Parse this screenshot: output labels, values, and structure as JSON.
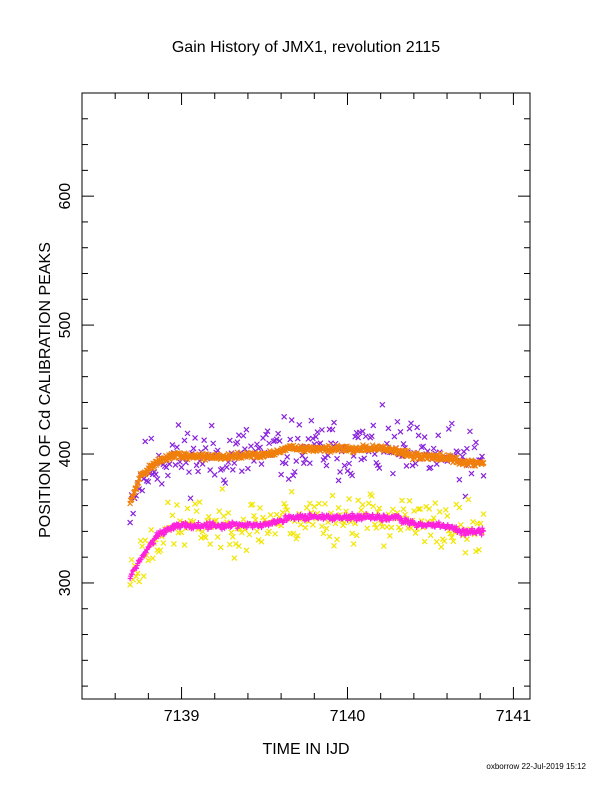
{
  "chart_data": {
    "type": "scatter",
    "title": "Gain History of JMX1, revolution 2115",
    "xlabel": "TIME IN IJD",
    "ylabel": "POSITION OF Cd CALIBRATION PEAKS",
    "xlim": [
      7138.4,
      7141.1
    ],
    "ylim": [
      210,
      680
    ],
    "x_ticks": [
      7139,
      7140,
      7141
    ],
    "y_ticks": [
      300,
      400,
      500,
      600
    ],
    "x_minor_step": 0.2,
    "y_minor_step": 20,
    "grid": false,
    "footer": "oxborrow 22-Jul-2019 15:12",
    "series": [
      {
        "color": "#8822dd",
        "marker": "x",
        "scatter_seed": 11,
        "trend": [
          [
            7138.69,
            362
          ],
          [
            7138.75,
            382
          ],
          [
            7138.85,
            394
          ],
          [
            7138.95,
            399
          ],
          [
            7139.2,
            398
          ],
          [
            7139.5,
            400
          ],
          [
            7139.65,
            403
          ],
          [
            7140.25,
            404
          ],
          [
            7140.4,
            398
          ],
          [
            7140.6,
            398
          ],
          [
            7140.75,
            392
          ],
          [
            7140.82,
            392
          ]
        ],
        "points_per_unit": 110,
        "spread": 12
      },
      {
        "color": "#f07f0c",
        "marker": "x",
        "trend": [
          [
            7138.69,
            362
          ],
          [
            7138.75,
            382
          ],
          [
            7138.85,
            394
          ],
          [
            7138.95,
            399
          ],
          [
            7139.2,
            398
          ],
          [
            7139.5,
            399
          ],
          [
            7139.65,
            404
          ],
          [
            7140.25,
            404
          ],
          [
            7140.35,
            400
          ],
          [
            7140.45,
            398
          ],
          [
            7140.6,
            397
          ],
          [
            7140.7,
            393
          ],
          [
            7140.82,
            393
          ]
        ],
        "points_per_unit": 260,
        "spread": 1.2
      },
      {
        "color": "#f2e600",
        "marker": "x",
        "scatter_seed": 23,
        "trend": [
          [
            7138.69,
            305
          ],
          [
            7138.75,
            318
          ],
          [
            7138.85,
            336
          ],
          [
            7138.95,
            344
          ],
          [
            7139.5,
            346
          ],
          [
            7139.65,
            351
          ],
          [
            7140.3,
            351
          ],
          [
            7140.4,
            345
          ],
          [
            7140.6,
            344
          ],
          [
            7140.72,
            340
          ],
          [
            7140.82,
            340
          ]
        ],
        "points_per_unit": 110,
        "spread": 10
      },
      {
        "color": "#ff22dd",
        "marker": "+",
        "trend": [
          [
            7138.69,
            305
          ],
          [
            7138.75,
            318
          ],
          [
            7138.85,
            336
          ],
          [
            7138.95,
            344
          ],
          [
            7139.5,
            345
          ],
          [
            7139.65,
            351
          ],
          [
            7140.3,
            351
          ],
          [
            7140.4,
            345
          ],
          [
            7140.55,
            345
          ],
          [
            7140.7,
            340
          ],
          [
            7140.82,
            340
          ]
        ],
        "points_per_unit": 260,
        "spread": 1.2
      }
    ]
  }
}
